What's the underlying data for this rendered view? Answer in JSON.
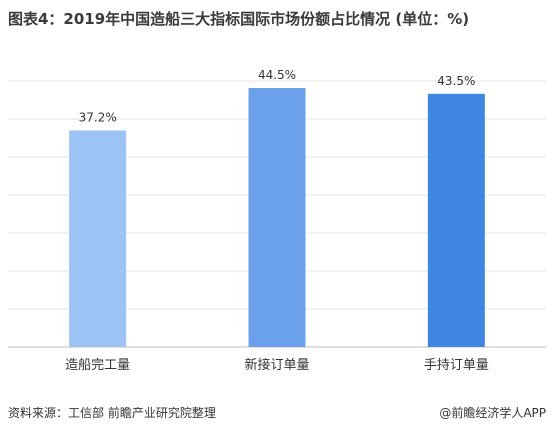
{
  "title": "图表4：2019年中国造船三大指标国际市场份额占比情况 (单位：%)",
  "source": "资料来源：工信部 前瞻产业研究院整理",
  "credit": "@前瞻经济学人APP",
  "chart_data": {
    "type": "bar",
    "categories": [
      "造船完工量",
      "新接订单量",
      "手持订单量"
    ],
    "values": [
      37.2,
      44.5,
      43.5
    ],
    "value_labels": [
      "37.2%",
      "44.5%",
      "43.5%"
    ],
    "bar_colors": [
      "#9dc3f5",
      "#6aa1ea",
      "#3f86e3"
    ],
    "ylim": [
      0,
      50
    ],
    "grid": true,
    "legend": "none"
  }
}
